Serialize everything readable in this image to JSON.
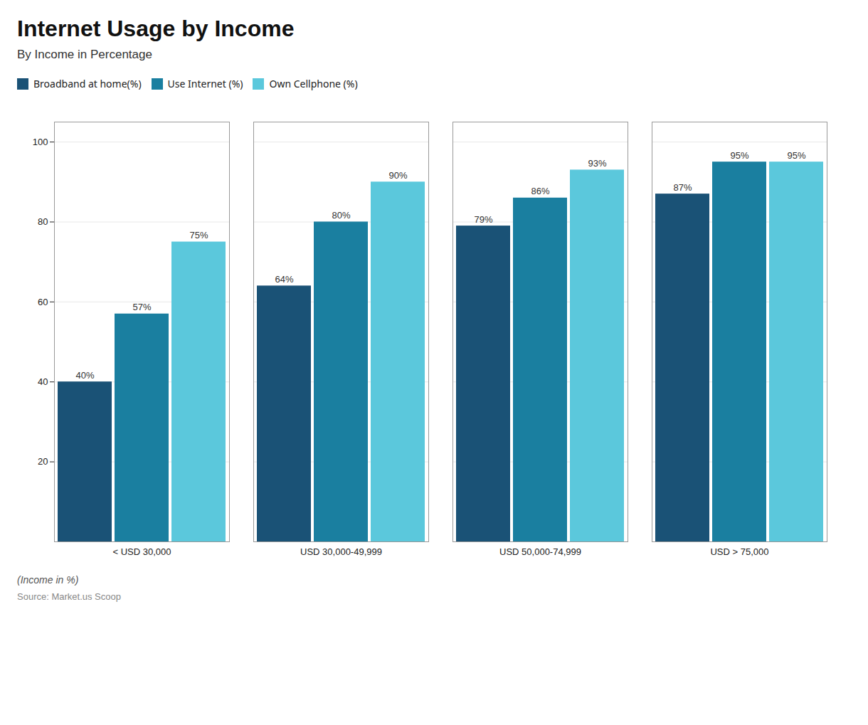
{
  "chart_data": {
    "type": "bar",
    "title": "Internet Usage by Income",
    "subtitle": "By Income in Percentage",
    "xlabel": "(Income in %)",
    "source": "Source: Market.us Scoop",
    "categories": [
      "< USD 30,000",
      "USD 30,000-49,999",
      "USD 50,000-74,999",
      "USD > 75,000"
    ],
    "series": [
      {
        "name": "Broadband at home(%)",
        "color": "#1a5276",
        "values": [
          40,
          64,
          79,
          87
        ],
        "value_labels": [
          "40%",
          "64%",
          "79%",
          "87%"
        ]
      },
      {
        "name": "Use Internet (%)",
        "color": "#1a7fa0",
        "values": [
          57,
          80,
          86,
          95
        ],
        "value_labels": [
          "57%",
          "80%",
          "86%",
          "95%"
        ]
      },
      {
        "name": "Own Cellphone (%)",
        "color": "#5bc8dc",
        "values": [
          75,
          90,
          93,
          95
        ],
        "value_labels": [
          "75%",
          "90%",
          "93%",
          "95%"
        ]
      }
    ],
    "ylim": [
      0,
      105
    ],
    "yticks": [
      20,
      40,
      60,
      80,
      100
    ],
    "grid": true,
    "legend": "top",
    "data_labels": true
  }
}
